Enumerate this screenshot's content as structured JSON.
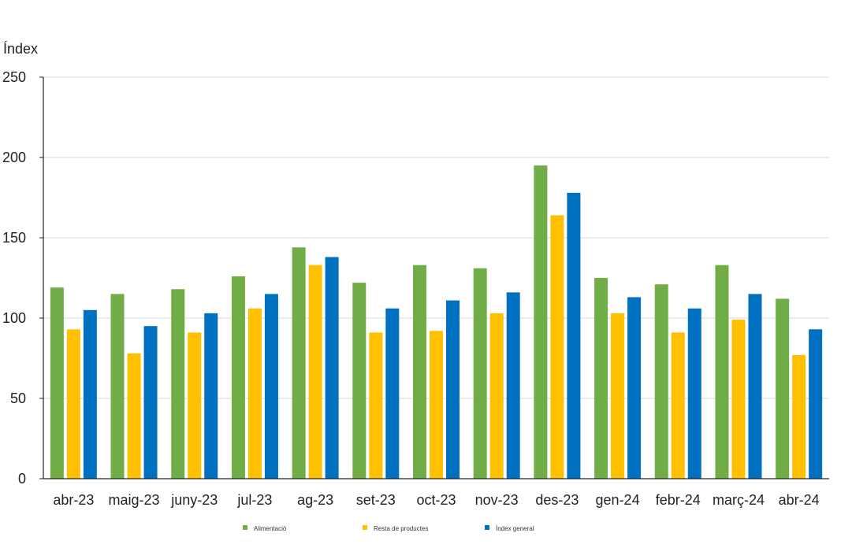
{
  "chart_data": {
    "type": "bar",
    "ylabel": "Índex",
    "xlabel": "",
    "ylim": [
      0,
      250
    ],
    "yticks": [
      0,
      50,
      100,
      150,
      200,
      250
    ],
    "grid": true,
    "legend_position": "bottom",
    "categories": [
      "abr-23",
      "maig-23",
      "juny-23",
      "jul-23",
      "ag-23",
      "set-23",
      "oct-23",
      "nov-23",
      "des-23",
      "gen-24",
      "febr-24",
      "març-24",
      "abr-24"
    ],
    "series": [
      {
        "name": "Alimentació",
        "color": "#70ad47",
        "values": [
          119,
          115,
          118,
          126,
          144,
          122,
          133,
          131,
          195,
          125,
          121,
          133,
          112
        ]
      },
      {
        "name": "Resta de productes",
        "color": "#ffc000",
        "values": [
          93,
          78,
          91,
          106,
          133,
          91,
          92,
          103,
          164,
          103,
          91,
          99,
          77
        ]
      },
      {
        "name": "Índex general",
        "color": "#0070c0",
        "values": [
          105,
          95,
          103,
          115,
          138,
          106,
          111,
          116,
          178,
          113,
          106,
          115,
          93
        ]
      }
    ]
  }
}
